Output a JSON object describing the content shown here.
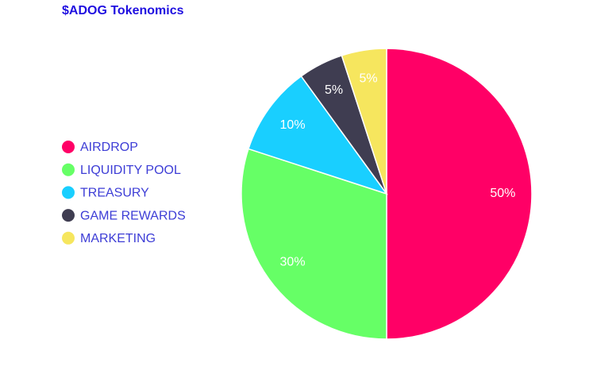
{
  "chart_data": {
    "type": "pie",
    "title": "$ADOG Tokenomics",
    "categories": [
      "AIRDROP",
      "LIQUIDITY POOL",
      "TREASURY",
      "GAME REWARDS",
      "MARKETING"
    ],
    "values": [
      50,
      30,
      10,
      5,
      5
    ],
    "value_labels": [
      "50%",
      "30%",
      "10%",
      "5%",
      "5%"
    ],
    "colors": [
      "#ff0066",
      "#66ff66",
      "#19cfff",
      "#3f3d51",
      "#f6e65e"
    ],
    "legend": "left"
  }
}
